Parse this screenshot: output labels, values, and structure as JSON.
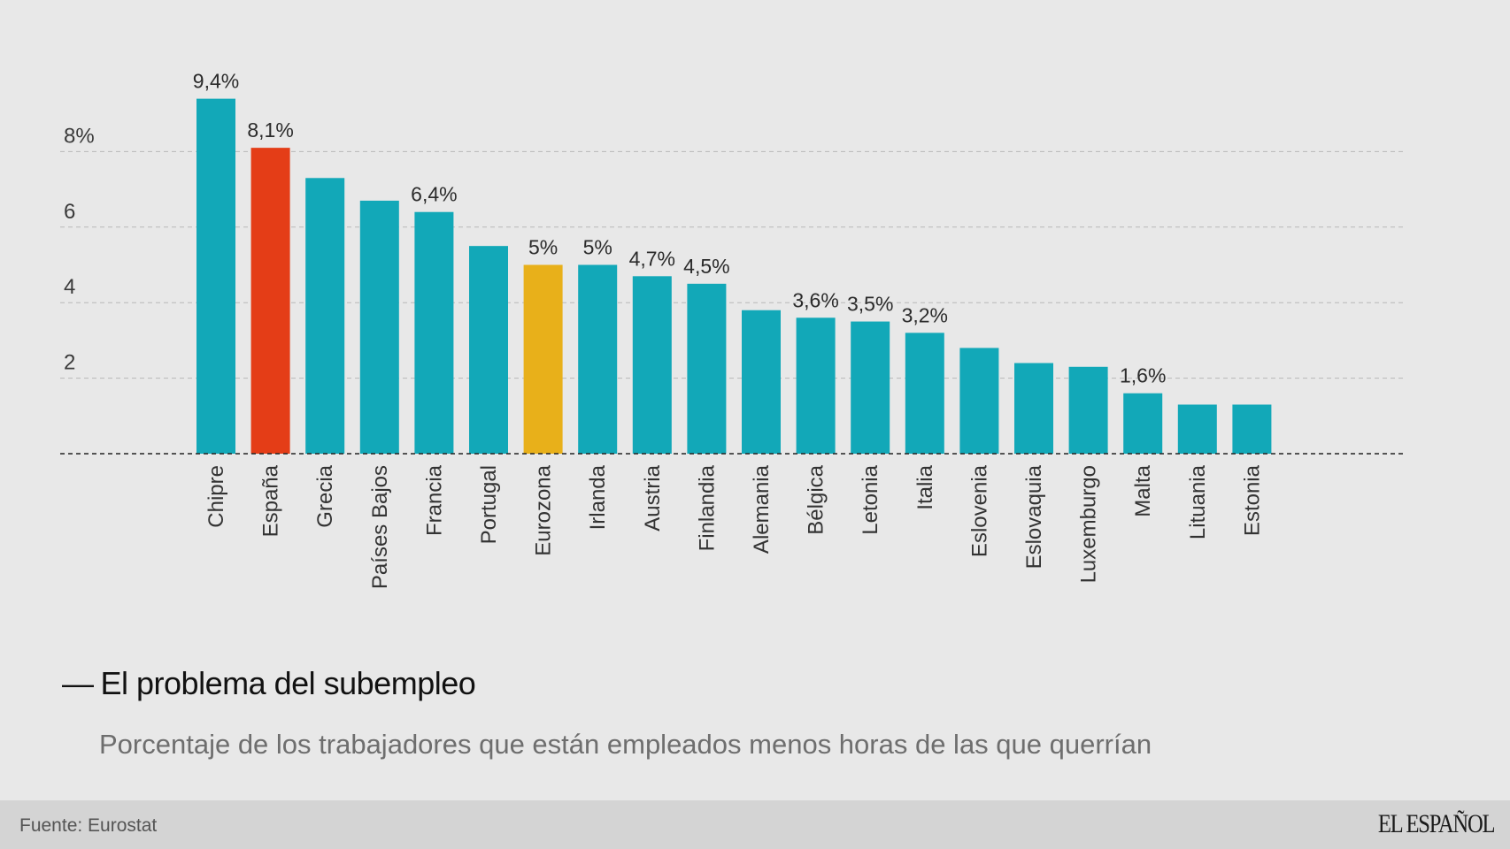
{
  "colors": {
    "background": "#e8e8e8",
    "default_bar": "#12a8b8",
    "highlight_spain": "#e43d17",
    "highlight_eurozone": "#e8b01a",
    "footer": "#d4d4d4"
  },
  "chart_data": {
    "type": "bar",
    "title": "El problema del subempleo",
    "subtitle": "Porcentaje de los trabajadores que están empleados menos horas de las que querrían",
    "xlabel": "",
    "ylabel": "",
    "ylim": [
      0,
      9.4
    ],
    "yticks": [
      2,
      4,
      6,
      8
    ],
    "ytick_labels": [
      "2",
      "4",
      "6",
      "8%"
    ],
    "grid": true,
    "categories": [
      "Chipre",
      "España",
      "Grecia",
      "Países Bajos",
      "Francia",
      "Portugal",
      "Eurozona",
      "Irlanda",
      "Austria",
      "Finlandia",
      "Alemania",
      "Bélgica",
      "Letonia",
      "Italia",
      "Eslovenia",
      "Eslovaquia",
      "Luxemburgo",
      "Malta",
      "Lituania",
      "Estonia"
    ],
    "values": [
      9.4,
      8.1,
      7.3,
      6.7,
      6.4,
      5.5,
      5.0,
      5.0,
      4.7,
      4.5,
      3.8,
      3.6,
      3.5,
      3.2,
      2.8,
      2.4,
      2.3,
      1.6,
      1.3,
      1.3
    ],
    "data_labels": [
      "9,4%",
      "8,1%",
      "",
      "",
      "6,4%",
      "",
      "5%",
      "5%",
      "4,7%",
      "4,5%",
      "",
      "3,6%",
      "3,5%",
      "3,2%",
      "",
      "",
      "",
      "1,6%",
      "",
      ""
    ],
    "bar_colors": [
      "default",
      "highlight_spain",
      "default",
      "default",
      "default",
      "default",
      "highlight_eurozone",
      "default",
      "default",
      "default",
      "default",
      "default",
      "default",
      "default",
      "default",
      "default",
      "default",
      "default",
      "default",
      "default"
    ]
  },
  "heading": {
    "dash": "—",
    "title": "El problema del subempleo",
    "subtitle": "Porcentaje de los trabajadores que están empleados menos horas de las que querrían"
  },
  "footer": {
    "source": "Fuente: Eurostat",
    "brand": "EL ESPAÑOL"
  }
}
